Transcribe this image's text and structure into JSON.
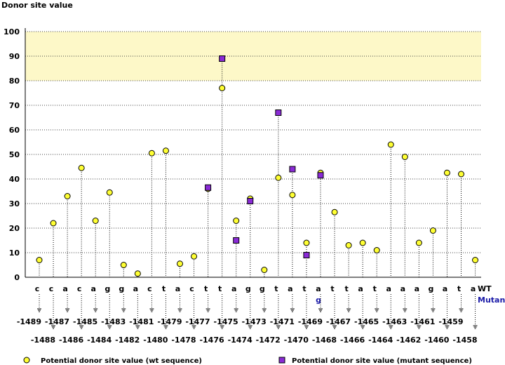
{
  "chart_data": {
    "type": "scatter",
    "title": "",
    "ylabel": "Donor site value",
    "ylim": [
      0,
      100
    ],
    "yticks": [
      0,
      10,
      20,
      30,
      40,
      50,
      60,
      70,
      80,
      90,
      100
    ],
    "highlight_band": {
      "from": 80,
      "to": 100,
      "color": "#fdf8c8"
    },
    "grid": "horizontal-dotted",
    "positions": [
      "-1489",
      "-1488",
      "-1487",
      "-1486",
      "-1485",
      "-1484",
      "-1483",
      "-1482",
      "-1481",
      "-1480",
      "-1479",
      "-1478",
      "-1477",
      "-1476",
      "-1475",
      "-1474",
      "-1473",
      "-1472",
      "-1471",
      "-1470",
      "-1469",
      "-1468",
      "-1467",
      "-1466",
      "-1465",
      "-1464",
      "-1463",
      "-1462",
      "-1461",
      "-1460",
      "-1459",
      "-1458"
    ],
    "wt_bases": [
      "c",
      "c",
      "a",
      "c",
      "a",
      "g",
      "g",
      "a",
      "c",
      "t",
      "a",
      "c",
      "t",
      "t",
      "a",
      "g",
      "g",
      "t",
      "a",
      "t",
      "a",
      "t",
      "t",
      "a",
      "t",
      "a",
      "a",
      "a",
      "g",
      "a",
      "t",
      "a"
    ],
    "mutant_bases": [
      "",
      "",
      "",
      "",
      "",
      "",
      "",
      "",
      "",
      "",
      "",
      "",
      "",
      "",
      "",
      "",
      "",
      "",
      "",
      "",
      "g",
      "",
      "",
      "",
      "",
      "",
      "",
      "",
      "",
      "",
      "",
      ""
    ],
    "row_labels": {
      "wt": "WT",
      "mutant": "Mutant"
    },
    "series": [
      {
        "name": "Potential donor site value (wt sequence)",
        "marker": "circle",
        "color": "#ffff33",
        "values": [
          7,
          22,
          33,
          44.5,
          23,
          34.5,
          5,
          1.5,
          50.5,
          51.5,
          5.5,
          8.5,
          36,
          77,
          23,
          32,
          3,
          40.5,
          33.5,
          14,
          42.5,
          26.5,
          13,
          14,
          11,
          54,
          49,
          14,
          19,
          42.5,
          42,
          7
        ]
      },
      {
        "name": "Potential donor site value (mutant sequence)",
        "marker": "square",
        "color": "#8a2bd6",
        "values": [
          null,
          null,
          null,
          null,
          null,
          null,
          null,
          null,
          null,
          null,
          null,
          null,
          36.5,
          89,
          15,
          31,
          null,
          67,
          44,
          9,
          41.5,
          null,
          null,
          null,
          null,
          null,
          null,
          null,
          null,
          null,
          null,
          null
        ]
      }
    ]
  }
}
